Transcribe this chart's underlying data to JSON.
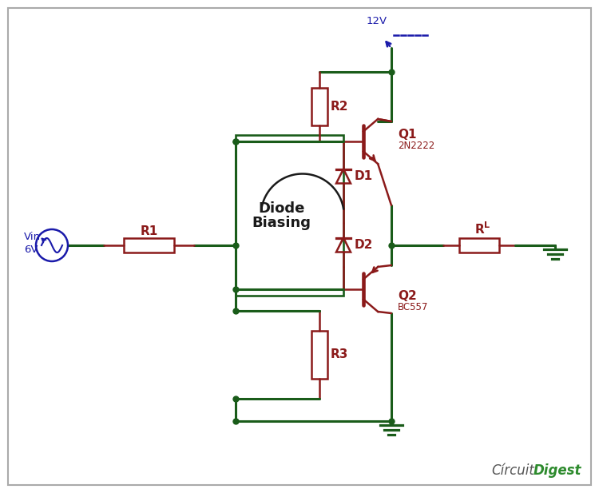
{
  "bg_color": "#ffffff",
  "wire_color": "#1a5c1a",
  "comp_color": "#8b1a1a",
  "blue_color": "#1a1aaa",
  "dark_color": "#1a1a1a",
  "lw_wire": 2.2,
  "lw_comp": 1.8,
  "vcc_label": "12V",
  "vin_label1": "Vin",
  "vin_label2": "6V",
  "q1_label": "Q1",
  "q1_sub": "2N2222",
  "q2_label": "Q2",
  "q2_sub": "BC557",
  "r1_label": "R1",
  "r2_label": "R2",
  "r3_label": "R3",
  "rl_label": "R",
  "rl_sub": "L",
  "d1_label": "D1",
  "d2_label": "D2",
  "box_label1": "Diode",
  "box_label2": "Biasing",
  "cd_label1": "Círcuit",
  "cd_label2": "Digest"
}
